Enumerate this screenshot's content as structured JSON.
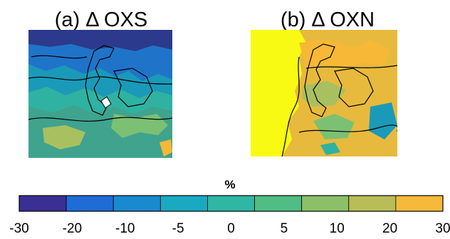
{
  "chart_data": {
    "type": "heatmap",
    "panels": [
      {
        "title": "(a) Δ OXS",
        "base_color": "#3fa38e",
        "regions": [
          {
            "fill": "#2b3a8c",
            "value_range": [
              -30,
              -20
            ]
          },
          {
            "fill": "#1f74c9",
            "value_range": [
              -20,
              -10
            ]
          },
          {
            "fill": "#1a9ab8",
            "value_range": [
              -10,
              -5
            ]
          },
          {
            "fill": "#2fb2a2",
            "value_range": [
              -5,
              0
            ]
          },
          {
            "fill": "#7cc073",
            "value_range": [
              5,
              10
            ]
          },
          {
            "fill": "#a9c060",
            "value_range": [
              10,
              20
            ]
          },
          {
            "fill": "#f6b836",
            "value_range": [
              20,
              30
            ]
          }
        ]
      },
      {
        "title": "(b) Δ OXN",
        "base_color": "#e7ba3d",
        "regions": [
          {
            "fill": "#f9fa14",
            "value_range": [
              30,
              30
            ]
          },
          {
            "fill": "#f6b836",
            "value_range": [
              20,
              30
            ]
          },
          {
            "fill": "#a9c060",
            "value_range": [
              10,
              20
            ]
          },
          {
            "fill": "#7cc073",
            "value_range": [
              5,
              10
            ]
          },
          {
            "fill": "#2fb2a2",
            "value_range": [
              -5,
              0
            ]
          },
          {
            "fill": "#1a9ab8",
            "value_range": [
              -10,
              -5
            ]
          }
        ]
      }
    ],
    "colorbar": {
      "label": "%",
      "ticks": [
        -30,
        -20,
        -10,
        -5,
        0,
        5,
        10,
        20,
        30
      ],
      "colors": [
        "#3b2f95",
        "#1f6cd6",
        "#198ad0",
        "#19aac2",
        "#2fb7a4",
        "#4fbd84",
        "#8cc068",
        "#b8bd57",
        "#f7b93a"
      ]
    }
  }
}
